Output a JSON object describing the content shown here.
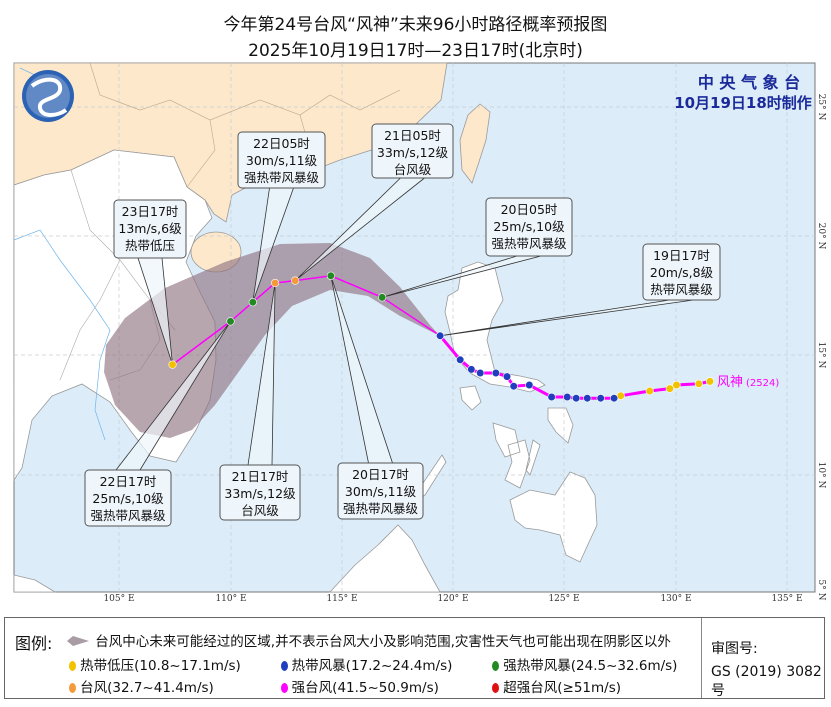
{
  "header": {
    "title": "今年第24号台风“风神”未来96小时路径概率预报图",
    "subtitle": "2025年10月19日17时—23日17时(北京时)"
  },
  "agency": {
    "name": "中 央 气 象 台",
    "issued": "10月19日18时制作"
  },
  "typhoon": {
    "name": "风神",
    "code": "(2524)",
    "color": "#ff00ff"
  },
  "axes": {
    "lon_labels": [
      "105° E",
      "110° E",
      "115° E",
      "120° E",
      "125° E",
      "130° E",
      "135° E"
    ],
    "lat_labels": [
      "25° N",
      "20° N",
      "15° N",
      "10° N",
      "5° N"
    ]
  },
  "intensity_colors": {
    "TD": "#f2c200",
    "TS": "#1f3fbf",
    "STS": "#238a23",
    "TY": "#f59a3c",
    "STY": "#ff00ff",
    "SuperTY": "#e01010"
  },
  "track_observed": [
    {
      "lon": 131.5,
      "lat": 13.9,
      "cat": "TD"
    },
    {
      "lon": 131.0,
      "lat": 13.8,
      "cat": "TD"
    },
    {
      "lon": 130.0,
      "lat": 13.75,
      "cat": "TD"
    },
    {
      "lon": 129.7,
      "lat": 13.6,
      "cat": "TD"
    },
    {
      "lon": 128.8,
      "lat": 13.5,
      "cat": "TD"
    },
    {
      "lon": 127.5,
      "lat": 13.3,
      "cat": "TD"
    },
    {
      "lon": 127.2,
      "lat": 13.2,
      "cat": "TS"
    },
    {
      "lon": 126.6,
      "lat": 13.2,
      "cat": "TS"
    },
    {
      "lon": 126.0,
      "lat": 13.2,
      "cat": "TS"
    },
    {
      "lon": 125.5,
      "lat": 13.2,
      "cat": "TS"
    },
    {
      "lon": 125.1,
      "lat": 13.25,
      "cat": "TS"
    },
    {
      "lon": 124.4,
      "lat": 13.25,
      "cat": "TS"
    },
    {
      "lon": 123.4,
      "lat": 13.75,
      "cat": "TS"
    },
    {
      "lon": 122.7,
      "lat": 13.7,
      "cat": "TS"
    },
    {
      "lon": 122.4,
      "lat": 14.1,
      "cat": "TS"
    },
    {
      "lon": 121.9,
      "lat": 14.25,
      "cat": "TS"
    },
    {
      "lon": 121.2,
      "lat": 14.25,
      "cat": "TS"
    },
    {
      "lon": 120.8,
      "lat": 14.4,
      "cat": "TS"
    },
    {
      "lon": 120.3,
      "lat": 14.8,
      "cat": "TS"
    },
    {
      "lon": 119.4,
      "lat": 15.8,
      "cat": "TS"
    }
  ],
  "track_forecast": [
    {
      "lon": 119.4,
      "lat": 15.8,
      "cat": "TS",
      "time": "19日17时",
      "wind": "20m/s,8级",
      "level": "热带风暴级"
    },
    {
      "lon": 116.8,
      "lat": 17.4,
      "cat": "STS",
      "time": "20日05时",
      "wind": "25m/s,10级",
      "level": "强热带风暴级"
    },
    {
      "lon": 114.5,
      "lat": 18.3,
      "cat": "STS",
      "time": "20日17时",
      "wind": "30m/s,11级",
      "level": "强热带风暴级"
    },
    {
      "lon": 112.9,
      "lat": 18.1,
      "cat": "TY",
      "time": "21日05时",
      "wind": "33m/s,12级",
      "level": "台风级"
    },
    {
      "lon": 112.0,
      "lat": 18.0,
      "cat": "TY",
      "time": "21日17时",
      "wind": "33m/s,12级",
      "level": "台风级"
    },
    {
      "lon": 111.0,
      "lat": 17.2,
      "cat": "STS",
      "time": "22日05时",
      "wind": "30m/s,11级",
      "level": "强热带风暴级"
    },
    {
      "lon": 110.0,
      "lat": 16.4,
      "cat": "STS",
      "time": "22日17时",
      "wind": "25m/s,10级",
      "level": "强热带风暴级"
    },
    {
      "lon": 107.4,
      "lat": 14.6,
      "cat": "TD",
      "time": "23日17时",
      "wind": "13m/s,6级",
      "level": "热带低压"
    }
  ],
  "legend": {
    "label": "图例:",
    "cone": "台风中心未来可能经过的区域,并不表示台风大小及影响范围,灾害性天气也可能出现在阴影区以外",
    "items": [
      {
        "cat": "TD",
        "text": "热带低压(10.8~17.1m/s)"
      },
      {
        "cat": "TS",
        "text": "热带风暴(17.2~24.4m/s)"
      },
      {
        "cat": "STS",
        "text": "强热带风暴(24.5~32.6m/s)"
      },
      {
        "cat": "TY",
        "text": "台风(32.7~41.4m/s)"
      },
      {
        "cat": "STY",
        "text": "强台风(41.5~50.9m/s)"
      },
      {
        "cat": "SuperTY",
        "text": "超强台风(≥51m/s)"
      }
    ],
    "approval_label": "审图号:",
    "approval_no": "GS (2019) 3082号"
  }
}
